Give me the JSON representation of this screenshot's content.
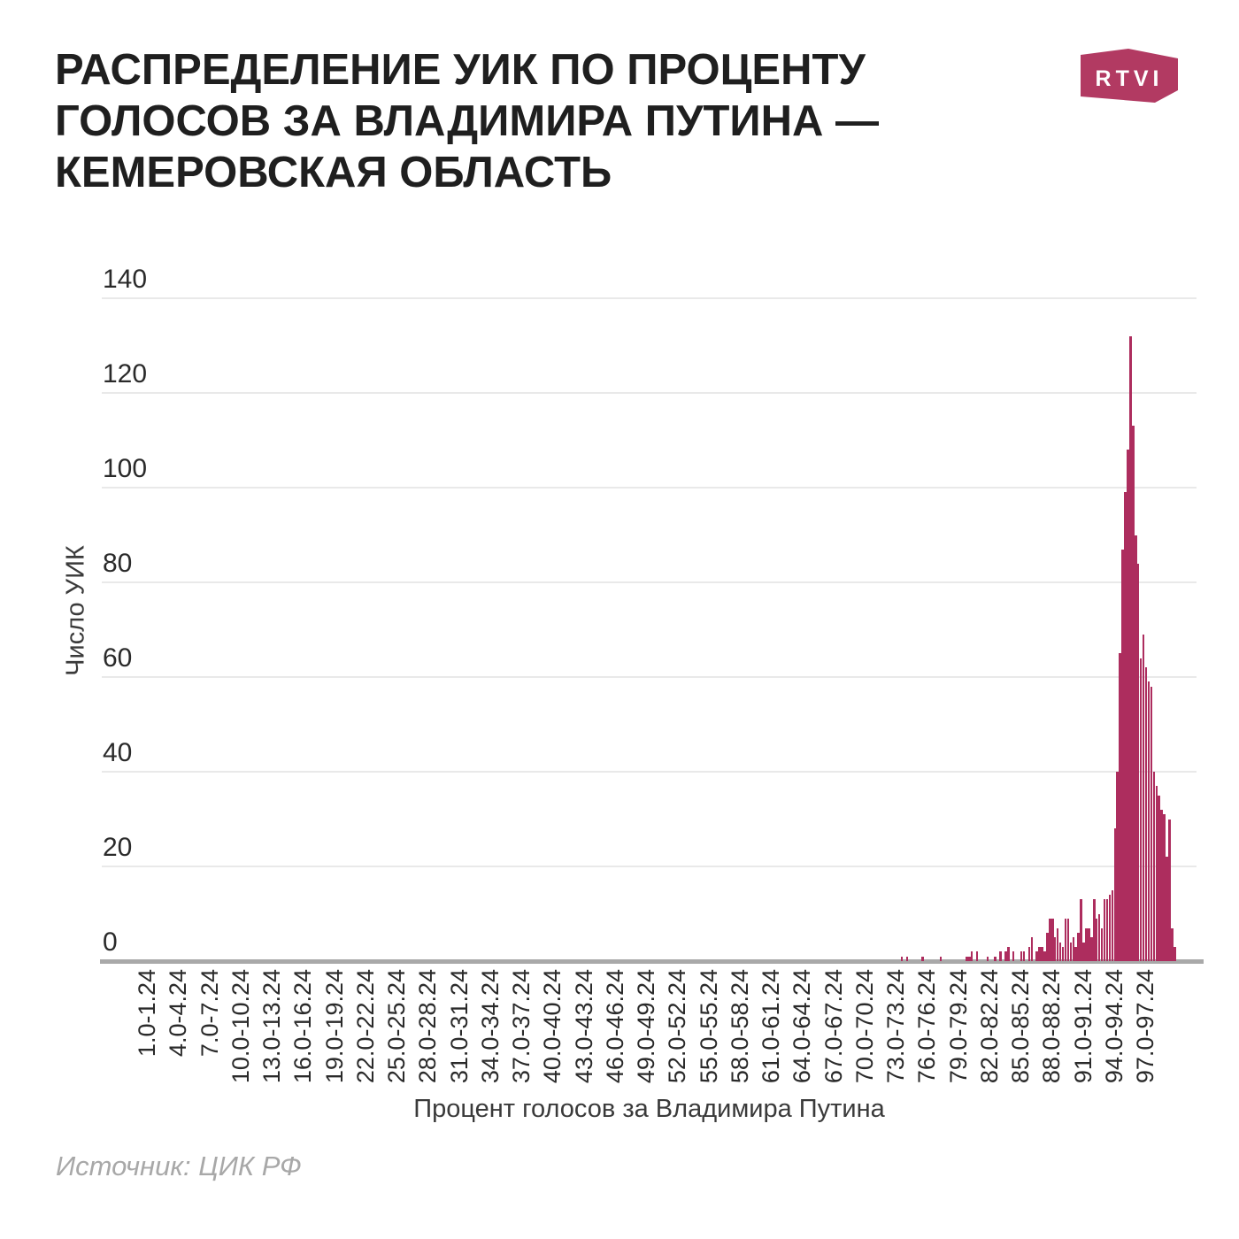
{
  "header": {
    "title": "РАСПРЕДЕЛЕНИЕ УИК ПО ПРОЦЕНТУ\nГОЛОСОВ ЗА ВЛАДИМИРА ПУТИНА —\nКЕМЕРОВСКАЯ ОБЛАСТЬ",
    "logo_text": "RTVI"
  },
  "footer": {
    "source": "Источник: ЦИК РФ"
  },
  "colors": {
    "bar": "#ad2d5e",
    "logo": "#b23a62",
    "grid": "#e9e9e9",
    "baseline": "#a9a9a9",
    "title_text": "#1f1f1f",
    "tick_text": "#2a2a2a",
    "muted_text": "#a8a8a8"
  },
  "chart_data": {
    "type": "bar",
    "title": "Распределение УИК по проценту голосов за Владимира Путина — Кемеровская область",
    "xlabel": "Процент голосов за Владимира Путина",
    "ylabel": "Число УИК",
    "ylim": [
      0,
      140
    ],
    "y_ticks": [
      0,
      20,
      40,
      60,
      80,
      100,
      120,
      140
    ],
    "grid": "horizontal",
    "legend": false,
    "x_tick_percents": [
      1,
      4,
      7,
      10,
      13,
      16,
      19,
      22,
      25,
      28,
      31,
      34,
      37,
      40,
      43,
      46,
      49,
      52,
      55,
      58,
      61,
      64,
      67,
      70,
      73,
      76,
      79,
      82,
      85,
      88,
      91,
      94,
      97
    ],
    "x_tick_labels": [
      "1.0-1.24",
      "4.0-4.24",
      "7.0-7.24",
      "10.0-10.24",
      "13.0-13.24",
      "16.0-16.24",
      "19.0-19.24",
      "22.0-22.24",
      "25.0-25.24",
      "28.0-28.24",
      "31.0-31.24",
      "34.0-34.24",
      "37.0-37.24",
      "40.0-40.24",
      "43.0-43.24",
      "46.0-46.24",
      "49.0-49.24",
      "52.0-52.24",
      "55.0-55.24",
      "58.0-58.24",
      "61.0-61.24",
      "64.0-64.24",
      "67.0-67.24",
      "70.0-70.24",
      "73.0-73.24",
      "76.0-76.24",
      "79.0-79.24",
      "82.0-82.24",
      "85.0-85.24",
      "88.0-88.24",
      "91.0-91.24",
      "94.0-94.24",
      "97.0-97.24"
    ],
    "bin_start": 73.0,
    "bin_width": 0.25,
    "values": [
      0,
      0,
      1,
      0,
      1,
      0,
      0,
      0,
      0,
      0,
      1,
      0,
      0,
      0,
      0,
      0,
      0,
      1,
      0,
      0,
      0,
      0,
      0,
      0,
      0,
      0,
      0,
      1,
      1,
      2,
      0,
      2,
      0,
      0,
      0,
      1,
      0,
      0,
      1,
      0,
      2,
      0,
      2,
      3,
      0,
      2,
      0,
      0,
      2,
      2,
      0,
      3,
      5,
      0,
      2,
      3,
      3,
      2,
      6,
      9,
      9,
      5,
      7,
      4,
      3,
      9,
      9,
      4,
      5,
      3,
      6,
      13,
      4,
      7,
      7,
      5,
      13,
      9,
      10,
      7,
      13,
      13,
      14,
      15,
      28,
      40,
      65,
      87,
      99,
      108,
      132,
      113,
      90,
      84,
      64,
      69,
      62,
      59,
      58,
      40,
      37,
      35,
      32,
      31,
      22,
      30,
      7,
      3
    ]
  }
}
